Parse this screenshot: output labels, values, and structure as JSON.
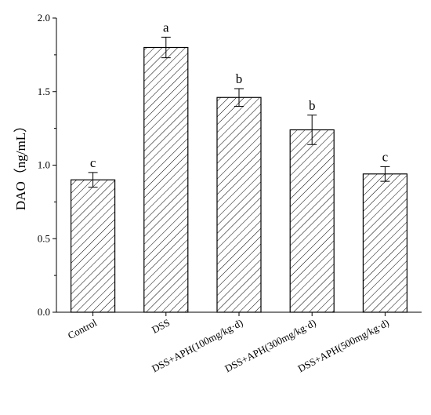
{
  "chart_data": {
    "type": "bar",
    "ylabel": "DAO（ng/mL）",
    "xlabel": "",
    "title": "",
    "categories": [
      "Control",
      "DSS",
      "DSS+APH(100mg/kg·d)",
      "DSS+APH(300mg/kg·d)",
      "DSS+APH(500mg/kg·d)"
    ],
    "values": [
      0.9,
      1.8,
      1.46,
      1.24,
      0.94
    ],
    "errors": [
      0.05,
      0.07,
      0.06,
      0.1,
      0.05
    ],
    "significance": [
      "c",
      "a",
      "b",
      "b",
      "c"
    ],
    "ylim": [
      0,
      2.0
    ],
    "yticks": [
      "0.0",
      "0.5",
      "1.0",
      "1.5",
      "2.0"
    ],
    "grid": false,
    "bar_fill": "hatched",
    "colors": {
      "bar_stroke": "#000000",
      "hatch": "#000000",
      "background": "#ffffff"
    }
  }
}
